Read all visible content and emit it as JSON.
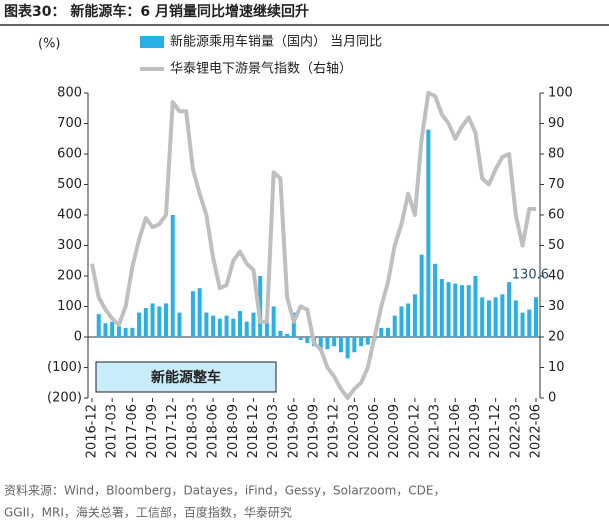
{
  "chart_data": {
    "type": "bar_line",
    "title": "图表30：  新能源车：6 月销量同比增速继续回升",
    "y_axis_unit": "(%)",
    "annotation": "新能源整车",
    "source": [
      "资料来源：Wind，Bloomberg，Datayes，iFind，Gessy，Solarzoom，CDE，",
      "GGII，MRI，海关总署，工信部，百度指数，华泰研究"
    ],
    "categories": [
      "2016-12",
      null,
      null,
      "2017-03",
      null,
      null,
      "2017-06",
      null,
      null,
      "2017-09",
      null,
      null,
      "2017-12",
      null,
      null,
      "2018-03",
      null,
      null,
      "2018-06",
      null,
      null,
      "2018-09",
      null,
      null,
      "2018-12",
      null,
      null,
      "2019-03",
      null,
      null,
      "2019-06",
      null,
      null,
      "2019-09",
      null,
      null,
      "2019-12",
      null,
      null,
      "2020-03",
      null,
      null,
      "2020-06",
      null,
      null,
      "2020-09",
      null,
      null,
      "2020-12",
      null,
      null,
      "2021-03",
      null,
      null,
      "2021-06",
      null,
      null,
      "2021-09",
      null,
      null,
      "2021-12",
      null,
      null,
      "2022-03",
      null,
      null,
      "2022-06"
    ],
    "series": [
      {
        "name": "新能源乘用车销量（国内） 当月同比",
        "color": "#29b0e6",
        "kind": "bar",
        "values": [
          null,
          75,
          45,
          50,
          35,
          30,
          30,
          80,
          95,
          110,
          100,
          110,
          400,
          80,
          null,
          150,
          160,
          80,
          70,
          60,
          70,
          60,
          85,
          50,
          80,
          200,
          60,
          100,
          20,
          10,
          80,
          -10,
          -20,
          -30,
          -45,
          -40,
          -30,
          -50,
          -70,
          -50,
          -30,
          -25,
          -10,
          30,
          30,
          70,
          100,
          110,
          140,
          270,
          680,
          240,
          190,
          180,
          175,
          170,
          170,
          200,
          130,
          120,
          130,
          140,
          180,
          120,
          80,
          90,
          130.6
        ]
      },
      {
        "name": "华泰锂电下游景气指数（右轴）",
        "color": "#bfbfbf",
        "kind": "line",
        "axis": "y2",
        "values": [
          44,
          33,
          29,
          26,
          24,
          30,
          43,
          52,
          59,
          56,
          57,
          60,
          97,
          94,
          94,
          75,
          67,
          60,
          46,
          36,
          37,
          45,
          48,
          44,
          42,
          25,
          25,
          74,
          72,
          33,
          25,
          30,
          29,
          18,
          16,
          10,
          7,
          3,
          0,
          3,
          5,
          10,
          20,
          30,
          38,
          50,
          57,
          67,
          60,
          85,
          100,
          99,
          93,
          90,
          85,
          89,
          92,
          87,
          72,
          70,
          75,
          79,
          80,
          60,
          50,
          62,
          62
        ]
      }
    ],
    "ylim": [
      -200,
      800
    ],
    "yticks": [
      {
        "value": -200,
        "label": "(200)"
      },
      {
        "value": -100,
        "label": "(100)"
      },
      0,
      100,
      200,
      300,
      400,
      500,
      600,
      700,
      800
    ],
    "y2lim": [
      0,
      100
    ],
    "y2ticks": [
      0,
      10,
      20,
      30,
      40,
      50,
      60,
      70,
      80,
      90,
      100
    ]
  }
}
